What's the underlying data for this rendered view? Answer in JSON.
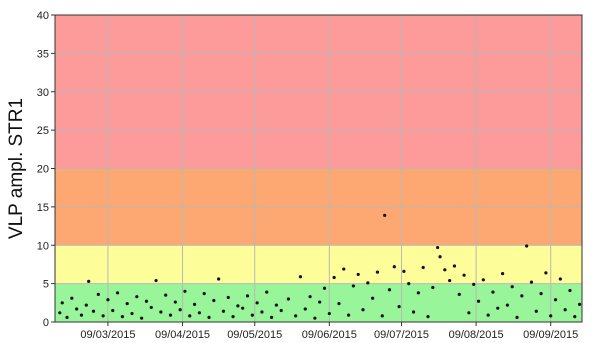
{
  "chart_data": {
    "type": "scatter",
    "title": "",
    "xlabel": "",
    "ylabel": "VLP ampl. STR1",
    "x_range": [
      "2015-02-15",
      "2015-09-22"
    ],
    "ylim": [
      0,
      40
    ],
    "y_ticks": [
      0,
      5,
      10,
      15,
      20,
      25,
      30,
      35,
      40
    ],
    "x_ticks": [
      "09/03/2015",
      "09/04/2015",
      "09/05/2015",
      "09/06/2015",
      "09/07/2015",
      "09/08/2015",
      "09/09/2015"
    ],
    "x_tick_dates": [
      "2015-03-09",
      "2015-04-09",
      "2015-05-09",
      "2015-06-09",
      "2015-07-09",
      "2015-08-09",
      "2015-09-09"
    ],
    "grid": true,
    "legend": "none",
    "bands": [
      {
        "from": 0,
        "to": 5,
        "color": "#99f599"
      },
      {
        "from": 5,
        "to": 10,
        "color": "#fdfd99"
      },
      {
        "from": 10,
        "to": 20,
        "color": "#fda872"
      },
      {
        "from": 20,
        "to": 40,
        "color": "#fd9a9a"
      }
    ],
    "series": [
      {
        "color": "#111111",
        "points": [
          [
            "2015-02-17",
            1.2
          ],
          [
            "2015-02-18",
            2.5
          ],
          [
            "2015-02-20",
            0.6
          ],
          [
            "2015-02-22",
            3.1
          ],
          [
            "2015-02-24",
            1.7
          ],
          [
            "2015-02-26",
            0.9
          ],
          [
            "2015-02-28",
            2.2
          ],
          [
            "2015-03-01",
            5.3
          ],
          [
            "2015-03-03",
            1.4
          ],
          [
            "2015-03-05",
            3.6
          ],
          [
            "2015-03-07",
            0.8
          ],
          [
            "2015-03-09",
            2.9
          ],
          [
            "2015-03-11",
            1.5
          ],
          [
            "2015-03-13",
            3.8
          ],
          [
            "2015-03-15",
            0.7
          ],
          [
            "2015-03-17",
            2.4
          ],
          [
            "2015-03-19",
            1.1
          ],
          [
            "2015-03-21",
            3.3
          ],
          [
            "2015-03-23",
            0.5
          ],
          [
            "2015-03-25",
            2.7
          ],
          [
            "2015-03-27",
            1.9
          ],
          [
            "2015-03-29",
            5.4
          ],
          [
            "2015-03-31",
            1.3
          ],
          [
            "2015-04-02",
            3.5
          ],
          [
            "2015-04-04",
            0.9
          ],
          [
            "2015-04-06",
            2.6
          ],
          [
            "2015-04-08",
            1.6
          ],
          [
            "2015-04-10",
            4.0
          ],
          [
            "2015-04-12",
            0.8
          ],
          [
            "2015-04-14",
            2.3
          ],
          [
            "2015-04-16",
            1.2
          ],
          [
            "2015-04-18",
            3.7
          ],
          [
            "2015-04-20",
            0.6
          ],
          [
            "2015-04-22",
            2.8
          ],
          [
            "2015-04-24",
            5.6
          ],
          [
            "2015-04-26",
            1.4
          ],
          [
            "2015-04-28",
            3.2
          ],
          [
            "2015-04-30",
            0.7
          ],
          [
            "2015-05-02",
            2.1
          ],
          [
            "2015-05-04",
            1.8
          ],
          [
            "2015-05-06",
            3.4
          ],
          [
            "2015-05-08",
            0.9
          ],
          [
            "2015-05-10",
            2.5
          ],
          [
            "2015-05-12",
            1.3
          ],
          [
            "2015-05-14",
            3.9
          ],
          [
            "2015-05-16",
            0.6
          ],
          [
            "2015-05-18",
            2.2
          ],
          [
            "2015-05-20",
            1.5
          ],
          [
            "2015-05-23",
            3.0
          ],
          [
            "2015-05-26",
            0.8
          ],
          [
            "2015-05-28",
            5.9
          ],
          [
            "2015-05-30",
            1.7
          ],
          [
            "2015-06-01",
            3.3
          ],
          [
            "2015-06-03",
            0.5
          ],
          [
            "2015-06-05",
            2.6
          ],
          [
            "2015-06-07",
            4.4
          ],
          [
            "2015-06-09",
            1.1
          ],
          [
            "2015-06-11",
            5.8
          ],
          [
            "2015-06-13",
            2.4
          ],
          [
            "2015-06-15",
            6.9
          ],
          [
            "2015-06-17",
            0.9
          ],
          [
            "2015-06-19",
            4.7
          ],
          [
            "2015-06-21",
            6.2
          ],
          [
            "2015-06-23",
            1.6
          ],
          [
            "2015-06-25",
            5.1
          ],
          [
            "2015-06-27",
            3.1
          ],
          [
            "2015-06-29",
            6.5
          ],
          [
            "2015-07-01",
            0.8
          ],
          [
            "2015-07-02",
            13.9
          ],
          [
            "2015-07-04",
            4.2
          ],
          [
            "2015-07-06",
            7.2
          ],
          [
            "2015-07-08",
            2.0
          ],
          [
            "2015-07-10",
            6.6
          ],
          [
            "2015-07-12",
            5.0
          ],
          [
            "2015-07-14",
            1.3
          ],
          [
            "2015-07-16",
            3.8
          ],
          [
            "2015-07-18",
            7.1
          ],
          [
            "2015-07-20",
            0.7
          ],
          [
            "2015-07-22",
            4.5
          ],
          [
            "2015-07-24",
            9.7
          ],
          [
            "2015-07-25",
            8.5
          ],
          [
            "2015-07-27",
            6.8
          ],
          [
            "2015-07-29",
            5.4
          ],
          [
            "2015-07-31",
            7.3
          ],
          [
            "2015-08-02",
            3.6
          ],
          [
            "2015-08-04",
            6.1
          ],
          [
            "2015-08-06",
            1.2
          ],
          [
            "2015-08-08",
            4.9
          ],
          [
            "2015-08-10",
            2.7
          ],
          [
            "2015-08-12",
            5.5
          ],
          [
            "2015-08-14",
            0.9
          ],
          [
            "2015-08-16",
            3.9
          ],
          [
            "2015-08-18",
            1.8
          ],
          [
            "2015-08-20",
            6.3
          ],
          [
            "2015-08-22",
            2.2
          ],
          [
            "2015-08-24",
            4.6
          ],
          [
            "2015-08-26",
            0.6
          ],
          [
            "2015-08-28",
            3.4
          ],
          [
            "2015-08-30",
            9.9
          ],
          [
            "2015-09-01",
            5.2
          ],
          [
            "2015-09-03",
            1.4
          ],
          [
            "2015-09-05",
            3.7
          ],
          [
            "2015-09-07",
            6.4
          ],
          [
            "2015-09-09",
            0.8
          ],
          [
            "2015-09-11",
            2.9
          ],
          [
            "2015-09-13",
            5.6
          ],
          [
            "2015-09-15",
            1.6
          ],
          [
            "2015-09-17",
            4.1
          ],
          [
            "2015-09-19",
            0.7
          ],
          [
            "2015-09-21",
            2.3
          ]
        ]
      }
    ]
  }
}
